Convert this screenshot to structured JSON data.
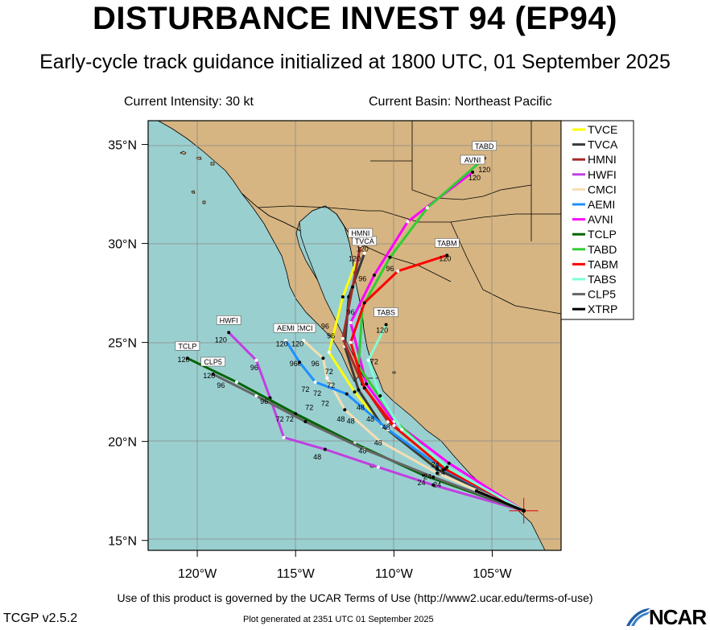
{
  "title": "DISTURBANCE INVEST 94 (EP94)",
  "subtitle": "Early-cycle track guidance initialized at 1800 UTC, 01 September 2025",
  "current_intensity": "Current Intensity: 30 kt",
  "current_basin": "Current Basin: Northeast Pacific",
  "footer": {
    "terms": "Use of this product is governed by the UCAR Terms of Use (http://www2.ucar.edu/terms-of-use)",
    "version": "TCGP v2.5.2",
    "generated": "Plot generated at 2351 UTC   01 September 2025",
    "logo": "NCAR"
  },
  "colors": {
    "ocean": "#9acfcf",
    "land": "#d6b582",
    "border": "#000000"
  },
  "axes": {
    "lon_ticks": [
      {
        "value": -120,
        "label": "120°W"
      },
      {
        "value": -115,
        "label": "115°W"
      },
      {
        "value": -110,
        "label": "110°W"
      },
      {
        "value": -105,
        "label": "105°W"
      }
    ],
    "lat_ticks": [
      {
        "value": 15,
        "label": "15°N"
      },
      {
        "value": 20,
        "label": "20°N"
      },
      {
        "value": 25,
        "label": "25°N"
      },
      {
        "value": 30,
        "label": "30°N"
      },
      {
        "value": 35,
        "label": "35°N"
      }
    ]
  },
  "chart_data": {
    "type": "map",
    "lon_range": [
      -122.5,
      -101.5
    ],
    "lat_range": [
      14.5,
      36.2
    ],
    "initial_position": {
      "lon": -103.4,
      "lat": 16.5
    },
    "tracks": [
      {
        "name": "TVCE",
        "color": "#ffff00",
        "label_at_end": false,
        "points": [
          [
            -103.4,
            16.5
          ],
          [
            -107.8,
            18.7
          ],
          [
            -110.5,
            20.7
          ],
          [
            -112.0,
            22.5
          ],
          [
            -113.3,
            24.5
          ],
          [
            -112.6,
            27.3
          ],
          [
            -111.9,
            29.1
          ]
        ]
      },
      {
        "name": "TVCA",
        "color": "#3a3a3a",
        "label_at_end": true,
        "points": [
          [
            -103.4,
            16.5
          ],
          [
            -107.8,
            18.6
          ],
          [
            -110.6,
            20.8
          ],
          [
            -111.8,
            22.6
          ],
          [
            -112.5,
            24.8
          ],
          [
            -112.3,
            27.3
          ],
          [
            -111.5,
            29.5
          ]
        ]
      },
      {
        "name": "HMNI",
        "color": "#a52a2a",
        "label_at_end": true,
        "points": [
          [
            -103.4,
            16.5
          ],
          [
            -107.6,
            18.8
          ],
          [
            -110.3,
            21.0
          ],
          [
            -111.6,
            22.9
          ],
          [
            -112.6,
            25.2
          ],
          [
            -112.1,
            27.8
          ],
          [
            -111.7,
            29.9
          ]
        ]
      },
      {
        "name": "HWFI",
        "color": "#c040e0",
        "label_at_end": true,
        "points": [
          [
            -103.4,
            16.5
          ],
          [
            -108.0,
            17.8
          ],
          [
            -110.8,
            18.7
          ],
          [
            -113.5,
            19.6
          ],
          [
            -115.6,
            20.2
          ],
          [
            -116.3,
            22.2
          ],
          [
            -117.0,
            24.1
          ],
          [
            -118.4,
            25.5
          ]
        ]
      },
      {
        "name": "CMCI",
        "color": "#f5deb3",
        "label_at_end": true,
        "points": [
          [
            -103.4,
            16.5
          ],
          [
            -107.8,
            18.4
          ],
          [
            -110.7,
            20.0
          ],
          [
            -112.5,
            21.6
          ],
          [
            -113.4,
            23.2
          ],
          [
            -113.6,
            24.2
          ],
          [
            -114.6,
            25.1
          ]
        ]
      },
      {
        "name": "AEMI",
        "color": "#1e90ff",
        "label_at_end": true,
        "points": [
          [
            -103.4,
            16.5
          ],
          [
            -107.5,
            18.6
          ],
          [
            -110.3,
            20.6
          ],
          [
            -112.4,
            22.4
          ],
          [
            -114.0,
            23.0
          ],
          [
            -114.8,
            24.0
          ],
          [
            -115.5,
            25.1
          ]
        ]
      },
      {
        "name": "AVNI",
        "color": "#ff00ff",
        "label_at_end": true,
        "points": [
          [
            -103.4,
            16.5
          ],
          [
            -107.2,
            18.9
          ],
          [
            -110.0,
            21.0
          ],
          [
            -111.4,
            22.9
          ],
          [
            -112.2,
            26.0
          ],
          [
            -111.0,
            28.4
          ],
          [
            -109.3,
            31.1
          ],
          [
            -106.0,
            33.6
          ]
        ]
      },
      {
        "name": "TCLP",
        "color": "#006400",
        "label_at_end": true,
        "points": [
          [
            -103.4,
            16.5
          ],
          [
            -108.5,
            18.3
          ],
          [
            -112.0,
            19.9
          ],
          [
            -115.0,
            21.4
          ],
          [
            -118.0,
            23.0
          ],
          [
            -120.5,
            24.2
          ]
        ]
      },
      {
        "name": "TABD",
        "color": "#32cd32",
        "label_at_end": true,
        "points": [
          [
            -103.4,
            16.5
          ],
          [
            -107.3,
            18.6
          ],
          [
            -109.8,
            20.9
          ],
          [
            -111.8,
            23.8
          ],
          [
            -111.6,
            26.8
          ],
          [
            -110.2,
            29.3
          ],
          [
            -108.3,
            31.8
          ],
          [
            -105.4,
            34.3
          ]
        ]
      },
      {
        "name": "TABM",
        "color": "#ff0000",
        "label_at_end": true,
        "points": [
          [
            -103.4,
            16.5
          ],
          [
            -107.4,
            18.6
          ],
          [
            -110.0,
            20.8
          ],
          [
            -111.5,
            22.7
          ],
          [
            -112.2,
            25.0
          ],
          [
            -111.5,
            27.0
          ],
          [
            -109.8,
            28.6
          ],
          [
            -107.3,
            29.4
          ]
        ]
      },
      {
        "name": "TABS",
        "color": "#7fffd4",
        "label_at_end": true,
        "points": [
          [
            -103.4,
            16.5
          ],
          [
            -107.3,
            18.7
          ],
          [
            -109.6,
            20.6
          ],
          [
            -110.7,
            22.3
          ],
          [
            -111.3,
            24.1
          ],
          [
            -110.4,
            25.9
          ]
        ]
      },
      {
        "name": "CLP5",
        "color": "#666666",
        "label_at_end": true,
        "points": [
          [
            -103.4,
            16.5
          ],
          [
            -108.0,
            18.2
          ],
          [
            -111.5,
            19.6
          ],
          [
            -114.5,
            21.0
          ],
          [
            -117.0,
            22.3
          ],
          [
            -119.2,
            23.4
          ]
        ]
      },
      {
        "name": "XTRP",
        "color": "#000000",
        "label_at_end": false,
        "points": [
          [
            -103.4,
            16.5
          ],
          [
            -105.8,
            17.5
          ]
        ]
      }
    ],
    "hour_labels": [
      {
        "text": "24",
        "lon": -107.9,
        "lat": 18.7
      },
      {
        "text": "24",
        "lon": -108.3,
        "lat": 18.1
      },
      {
        "text": "24",
        "lon": -108.6,
        "lat": 17.8
      },
      {
        "text": "24",
        "lon": -107.8,
        "lat": 17.7
      },
      {
        "text": "24",
        "lon": -107.6,
        "lat": 18.3
      },
      {
        "text": "48",
        "lon": -111.7,
        "lat": 21.6
      },
      {
        "text": "48",
        "lon": -111.2,
        "lat": 21.0
      },
      {
        "text": "48",
        "lon": -110.4,
        "lat": 20.6
      },
      {
        "text": "48",
        "lon": -112.2,
        "lat": 20.9
      },
      {
        "text": "48",
        "lon": -110.8,
        "lat": 19.8
      },
      {
        "text": "48",
        "lon": -111.6,
        "lat": 19.4
      },
      {
        "text": "48",
        "lon": -113.9,
        "lat": 19.1
      },
      {
        "text": "48",
        "lon": -112.7,
        "lat": 21.0
      },
      {
        "text": "72",
        "lon": -115.3,
        "lat": 21.0
      },
      {
        "text": "72",
        "lon": -114.3,
        "lat": 21.6
      },
      {
        "text": "72",
        "lon": -115.8,
        "lat": 21.0
      },
      {
        "text": "72",
        "lon": -113.9,
        "lat": 22.3
      },
      {
        "text": "72",
        "lon": -114.5,
        "lat": 22.5
      },
      {
        "text": "72",
        "lon": -113.3,
        "lat": 23.4
      },
      {
        "text": "72",
        "lon": -113.2,
        "lat": 22.7
      },
      {
        "text": "72",
        "lon": -111.0,
        "lat": 23.9
      },
      {
        "text": "72",
        "lon": -113.5,
        "lat": 21.8
      },
      {
        "text": "96",
        "lon": -118.8,
        "lat": 22.7
      },
      {
        "text": "96",
        "lon": -116.6,
        "lat": 21.9
      },
      {
        "text": "96",
        "lon": -117.1,
        "lat": 23.6
      },
      {
        "text": "96",
        "lon": -115.1,
        "lat": 23.8
      },
      {
        "text": "96",
        "lon": -114.0,
        "lat": 23.8
      },
      {
        "text": "96",
        "lon": -113.5,
        "lat": 25.7
      },
      {
        "text": "96",
        "lon": -113.2,
        "lat": 25.2
      },
      {
        "text": "96",
        "lon": -112.2,
        "lat": 26.4
      },
      {
        "text": "96",
        "lon": -111.6,
        "lat": 28.1
      },
      {
        "text": "96",
        "lon": -110.2,
        "lat": 28.6
      },
      {
        "text": "120",
        "lon": -120.7,
        "lat": 24.0
      },
      {
        "text": "120",
        "lon": -119.4,
        "lat": 23.2
      },
      {
        "text": "120",
        "lon": -118.8,
        "lat": 25.0
      },
      {
        "text": "120",
        "lon": -115.7,
        "lat": 24.8
      },
      {
        "text": "120",
        "lon": -114.9,
        "lat": 24.8
      },
      {
        "text": "120",
        "lon": -112.0,
        "lat": 29.1
      },
      {
        "text": "120",
        "lon": -111.6,
        "lat": 29.6
      },
      {
        "text": "120",
        "lon": -110.6,
        "lat": 25.5
      },
      {
        "text": "120",
        "lon": -107.4,
        "lat": 29.1
      },
      {
        "text": "120",
        "lon": -105.9,
        "lat": 33.2
      },
      {
        "text": "120",
        "lon": -105.4,
        "lat": 33.6
      }
    ]
  }
}
